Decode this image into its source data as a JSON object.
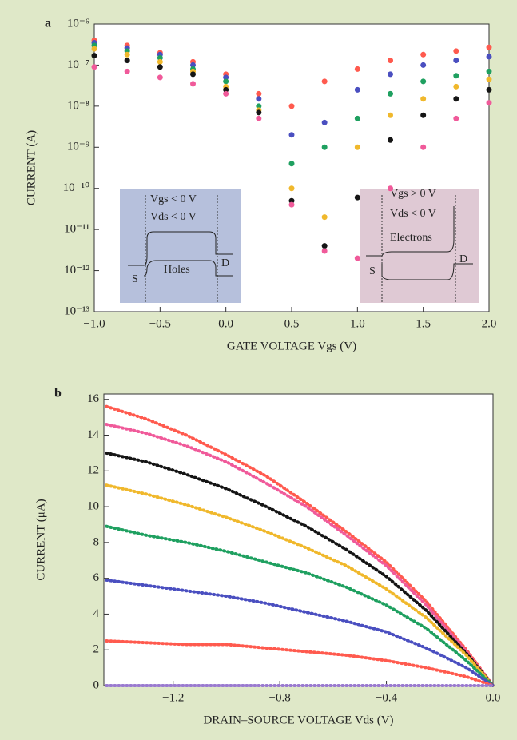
{
  "chart_data": [
    {
      "type": "scatter",
      "panel": "a",
      "y_label": "CURRENT (A)",
      "x_label": "GATE VOLTAGE Vgs (V)",
      "yscale": "log",
      "x": [
        -1,
        -0.75,
        -0.5,
        -0.25,
        0,
        0.25,
        0.5,
        0.75,
        1,
        1.25,
        1.5,
        1.75,
        2
      ],
      "series": [
        {
          "color": "#ff5a4e",
          "values": [
            4e-07,
            3e-07,
            2e-07,
            1.2e-07,
            6e-08,
            2e-08,
            1e-08,
            4e-08,
            8e-08,
            1.3e-07,
            1.8e-07,
            2.2e-07,
            2.7e-07
          ]
        },
        {
          "color": "#4a4fc0",
          "values": [
            3.5e-07,
            2.6e-07,
            1.8e-07,
            1e-07,
            5e-08,
            1.5e-08,
            2e-09,
            4e-09,
            2.5e-08,
            6e-08,
            1e-07,
            1.3e-07,
            1.6e-07
          ]
        },
        {
          "color": "#1fa060",
          "values": [
            3e-07,
            2.2e-07,
            1.5e-07,
            8e-08,
            4e-08,
            1e-08,
            4e-10,
            1e-09,
            5e-09,
            2e-08,
            4e-08,
            5.5e-08,
            7e-08
          ]
        },
        {
          "color": "#f0b82c",
          "values": [
            2.5e-07,
            1.8e-07,
            1.2e-07,
            7e-08,
            3e-08,
            8e-09,
            1e-10,
            2e-11,
            1e-09,
            6e-09,
            1.5e-08,
            3e-08,
            4.5e-08
          ]
        },
        {
          "color": "#151515",
          "values": [
            1.7e-07,
            1.3e-07,
            9e-08,
            6e-08,
            2.5e-08,
            7e-09,
            5e-11,
            4e-12,
            6e-11,
            1.5e-09,
            6e-09,
            1.5e-08,
            2.5e-08
          ]
        },
        {
          "color": "#f05a9a",
          "values": [
            9e-08,
            7e-08,
            5e-08,
            3.5e-08,
            2e-08,
            5e-09,
            4e-11,
            3e-12,
            2e-12,
            1e-10,
            1e-09,
            5e-09,
            1.2e-08
          ]
        }
      ],
      "xlim": [
        -1,
        2
      ],
      "xticks": [
        {
          "value": -1,
          "label": "−1.0"
        },
        {
          "value": -0.5,
          "label": "−0.5"
        },
        {
          "value": 0,
          "label": "0.0"
        },
        0.5,
        {
          "value": 1,
          "label": "1.0"
        },
        1.5,
        {
          "value": 2,
          "label": "2.0"
        }
      ],
      "ylim": [
        1e-13,
        1e-06
      ],
      "yticks": [
        {
          "value": 1e-06,
          "label": "10⁻⁶"
        },
        {
          "value": 1e-07,
          "label": "10⁻⁷"
        },
        {
          "value": 1e-08,
          "label": "10⁻⁸"
        },
        {
          "value": 1e-09,
          "label": "10⁻⁹"
        },
        {
          "value": 1e-10,
          "label": "10⁻¹⁰"
        },
        {
          "value": 1e-11,
          "label": "10⁻¹¹"
        },
        {
          "value": 1e-12,
          "label": "10⁻¹²"
        },
        {
          "value": 1e-13,
          "label": "10⁻¹³"
        }
      ],
      "annotations": [
        "Vgs < 0 V",
        "Vds < 0 V",
        "Holes",
        "S",
        "D",
        "Vgs > 0 V",
        "Vds < 0 V",
        "Electrons",
        "S",
        "D"
      ]
    },
    {
      "type": "line",
      "panel": "b",
      "y_label": "CURRENT (μA)",
      "x_label": "DRAIN–SOURCE VOLTAGE Vds (V)",
      "x": [
        -1.45,
        -1.3,
        -1.15,
        -1.0,
        -0.85,
        -0.7,
        -0.55,
        -0.4,
        -0.25,
        -0.1,
        0
      ],
      "series": [
        {
          "color": "#ff5a4e",
          "values": [
            15.6,
            14.9,
            14.0,
            12.9,
            11.7,
            10.2,
            8.6,
            6.9,
            4.7,
            2.0,
            0
          ]
        },
        {
          "color": "#f05a9a",
          "values": [
            14.6,
            14.1,
            13.4,
            12.5,
            11.3,
            10.0,
            8.4,
            6.7,
            4.5,
            1.9,
            0
          ]
        },
        {
          "color": "#151515",
          "values": [
            13.0,
            12.5,
            11.8,
            11.0,
            10.0,
            8.9,
            7.6,
            6.1,
            4.2,
            1.8,
            0
          ]
        },
        {
          "color": "#f0b82c",
          "values": [
            11.2,
            10.7,
            10.1,
            9.4,
            8.6,
            7.7,
            6.7,
            5.4,
            3.8,
            1.7,
            0
          ]
        },
        {
          "color": "#1fa060",
          "values": [
            8.9,
            8.4,
            8.0,
            7.5,
            6.9,
            6.3,
            5.5,
            4.5,
            3.2,
            1.4,
            0
          ]
        },
        {
          "color": "#4a4fc0",
          "values": [
            5.9,
            5.6,
            5.3,
            5.0,
            4.6,
            4.1,
            3.6,
            3.0,
            2.1,
            1.0,
            0
          ]
        },
        {
          "color": "#ff5a4e",
          "values": [
            2.5,
            2.4,
            2.3,
            2.3,
            2.1,
            1.9,
            1.7,
            1.4,
            1.0,
            0.5,
            0
          ]
        },
        {
          "color": "#9a7ad0",
          "values": [
            0,
            0,
            0,
            0,
            0,
            0,
            0,
            0,
            0,
            0,
            0
          ]
        }
      ],
      "xlim": [
        -1.46,
        0
      ],
      "xticks": [
        {
          "value": -1.2,
          "label": "−1.2"
        },
        {
          "value": -0.8,
          "label": "−0.8"
        },
        {
          "value": -0.4,
          "label": "−0.4"
        },
        {
          "value": 0,
          "label": "0.0"
        }
      ],
      "ylim": [
        0,
        16.3
      ],
      "yticks": [
        0,
        2,
        4,
        6,
        8,
        10,
        12,
        14,
        16
      ]
    }
  ]
}
